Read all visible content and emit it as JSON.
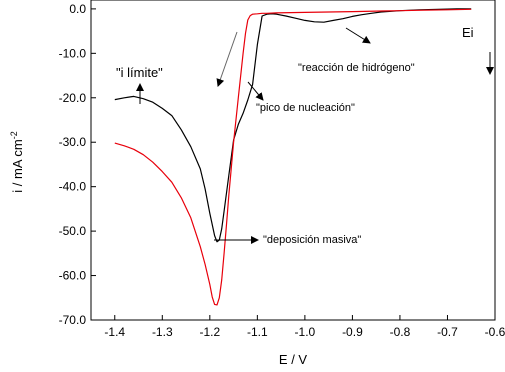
{
  "chart_data": {
    "type": "line",
    "xlabel": "E / V",
    "ylabel_main": "i / mA cm",
    "ylabel_exp": "-2",
    "xlim": [
      -1.45,
      -0.6
    ],
    "ylim": [
      -70,
      2
    ],
    "x_ticks": [
      {
        "value": -1.4,
        "label": "-1.4"
      },
      {
        "value": -1.3,
        "label": "-1.3"
      },
      {
        "value": -1.2,
        "label": "-1.2"
      },
      {
        "value": -1.1,
        "label": "-1.1"
      },
      {
        "value": -1.0,
        "label": "-1.0"
      },
      {
        "value": -0.9,
        "label": "-0.9"
      },
      {
        "value": -0.8,
        "label": "-0.8"
      },
      {
        "value": -0.7,
        "label": "-0.7"
      },
      {
        "value": -0.6,
        "label": "-0.6"
      }
    ],
    "y_ticks": [
      {
        "value": 0,
        "label": "0.0"
      },
      {
        "value": -10,
        "label": "-10.0"
      },
      {
        "value": -20,
        "label": "-20.0"
      },
      {
        "value": -30,
        "label": "-30.0"
      },
      {
        "value": -40,
        "label": "-40.0"
      },
      {
        "value": -50,
        "label": "-50.0"
      },
      {
        "value": -60,
        "label": "-60.0"
      },
      {
        "value": -70,
        "label": "-70.0"
      }
    ],
    "grid": false,
    "series": [
      {
        "color": "#000000",
        "x": [
          -1.4,
          -1.38,
          -1.36,
          -1.34,
          -1.32,
          -1.3,
          -1.28,
          -1.26,
          -1.24,
          -1.22,
          -1.21,
          -1.2,
          -1.19,
          -1.185,
          -1.18,
          -1.175,
          -1.17,
          -1.16,
          -1.15,
          -1.14,
          -1.13,
          -1.12,
          -1.11,
          -1.1,
          -1.09,
          -1.08,
          -1.07,
          -1.06,
          -1.04,
          -1.02,
          -1.0,
          -0.98,
          -0.96,
          -0.94,
          -0.92,
          -0.9,
          -0.88,
          -0.86,
          -0.84,
          -0.8,
          -0.76,
          -0.72,
          -0.68,
          -0.65
        ],
        "y": [
          -20.4,
          -20.0,
          -19.7,
          -20.2,
          -21.0,
          -22.4,
          -24.0,
          -27.2,
          -31.0,
          -36.0,
          -40.5,
          -46.0,
          -51.0,
          -52.4,
          -52.0,
          -49.5,
          -45.5,
          -37.5,
          -29.5,
          -26.0,
          -23.5,
          -20.5,
          -17.0,
          -8.0,
          -1.6,
          -1.2,
          -1.1,
          -1.2,
          -1.6,
          -2.1,
          -2.6,
          -2.9,
          -3.0,
          -2.6,
          -2.2,
          -1.7,
          -1.3,
          -1.0,
          -0.7,
          -0.4,
          -0.2,
          -0.1,
          0.0,
          0.0
        ]
      },
      {
        "color": "#e8000b",
        "x": [
          -1.4,
          -1.38,
          -1.36,
          -1.34,
          -1.32,
          -1.3,
          -1.28,
          -1.26,
          -1.24,
          -1.22,
          -1.21,
          -1.2,
          -1.195,
          -1.19,
          -1.185,
          -1.18,
          -1.175,
          -1.17,
          -1.165,
          -1.16,
          -1.155,
          -1.15,
          -1.14,
          -1.13,
          -1.125,
          -1.12,
          -1.115,
          -1.11,
          -1.1,
          -1.09,
          -1.08,
          -1.06,
          -1.0,
          -0.95,
          -0.9,
          -0.85,
          -0.8,
          -0.75,
          -0.7,
          -0.65
        ],
        "y": [
          -30.2,
          -30.8,
          -31.6,
          -32.8,
          -34.5,
          -36.6,
          -39.0,
          -42.5,
          -47.0,
          -53.5,
          -57.5,
          -62.0,
          -64.8,
          -66.5,
          -66.6,
          -65.0,
          -61.0,
          -55.0,
          -48.5,
          -42.0,
          -36.0,
          -30.0,
          -20.0,
          -10.0,
          -5.5,
          -2.5,
          -1.5,
          -1.2,
          -1.1,
          -1.0,
          -1.0,
          -0.9,
          -0.8,
          -0.7,
          -0.6,
          -0.5,
          -0.4,
          -0.3,
          -0.2,
          -0.1
        ]
      }
    ],
    "annotations": {
      "limit": "\"i límite\"",
      "hydrogen": "\"reacción de hidrógeno\"",
      "nucleation": "\"pico de nucleación\"",
      "deposition": "\"deposición masiva\"",
      "ei": "Ei"
    }
  }
}
